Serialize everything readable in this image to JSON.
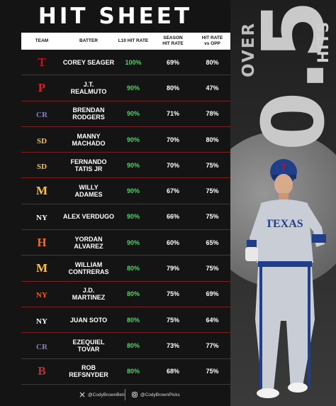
{
  "title": "HIT SHEET",
  "headers": {
    "team": "TEAM",
    "batter": "BATTER",
    "l10": "L10 HIT RATE",
    "season_line1": "SEASON",
    "season_line2": "HIT RATE",
    "opp_line1": "HIT RATE",
    "opp_line2": "vs OPP"
  },
  "rows": [
    {
      "team": "Texas Rangers",
      "logo": "T",
      "color": "#c0111f",
      "line1": "COREY SEAGER",
      "line2": "",
      "l10": "100%",
      "season": "69%",
      "opp": "80%"
    },
    {
      "team": "Philadelphia Phillies",
      "logo": "P",
      "color": "#e81828",
      "line1": "J.T.",
      "line2": "REALMUTO",
      "l10": "90%",
      "season": "80%",
      "opp": "47%"
    },
    {
      "team": "Colorado Rockies",
      "logo": "CR",
      "color": "#8a7fbf",
      "line1": "BRENDAN",
      "line2": "RODGERS",
      "l10": "90%",
      "season": "71%",
      "opp": "78%"
    },
    {
      "team": "San Diego Padres",
      "logo": "SD",
      "color": "#f2c14e",
      "line1": "MANNY",
      "line2": "MACHADO",
      "l10": "90%",
      "season": "70%",
      "opp": "80%"
    },
    {
      "team": "San Diego Padres",
      "logo": "SD",
      "color": "#f2c14e",
      "line1": "FERNANDO",
      "line2": "TATIS JR",
      "l10": "90%",
      "season": "70%",
      "opp": "75%"
    },
    {
      "team": "Milwaukee Brewers",
      "logo": "M",
      "color": "#ffc52f",
      "line1": "WILLY",
      "line2": "ADAMES",
      "l10": "90%",
      "season": "67%",
      "opp": "75%"
    },
    {
      "team": "New York Yankees",
      "logo": "NY",
      "color": "#ffffff",
      "line1": "ALEX VERDUGO",
      "line2": "",
      "l10": "90%",
      "season": "66%",
      "opp": "75%"
    },
    {
      "team": "Houston Astros",
      "logo": "H",
      "color": "#eb6e1f",
      "line1": "YORDAN",
      "line2": "ALVAREZ",
      "l10": "90%",
      "season": "60%",
      "opp": "65%"
    },
    {
      "team": "Milwaukee Brewers",
      "logo": "M",
      "color": "#ffc52f",
      "line1": "WILLIAM",
      "line2": "CONTRERAS",
      "l10": "80%",
      "season": "79%",
      "opp": "75%"
    },
    {
      "team": "New York Mets",
      "logo": "NY",
      "color": "#ff5910",
      "line1": "J.D.",
      "line2": "MARTINEZ",
      "l10": "80%",
      "season": "75%",
      "opp": "69%"
    },
    {
      "team": "New York Yankees",
      "logo": "NY",
      "color": "#ffffff",
      "line1": "JUAN SOTO",
      "line2": "",
      "l10": "80%",
      "season": "75%",
      "opp": "64%"
    },
    {
      "team": "Colorado Rockies",
      "logo": "CR",
      "color": "#8a7fbf",
      "line1": "EZEQUIEL",
      "line2": "TOVAR",
      "l10": "80%",
      "season": "73%",
      "opp": "77%"
    },
    {
      "team": "Boston Red Sox",
      "logo": "B",
      "color": "#bd3039",
      "line1": "ROB",
      "line2": "REFSNYDER",
      "l10": "80%",
      "season": "68%",
      "opp": "75%"
    }
  ],
  "side": {
    "over": "OVER",
    "number": "0.5",
    "hits": "HITS"
  },
  "player_jersey": "TEXAS",
  "footer": {
    "twitter": "@CodyBrownBets",
    "instagram": "@CodyBrownPicks"
  }
}
